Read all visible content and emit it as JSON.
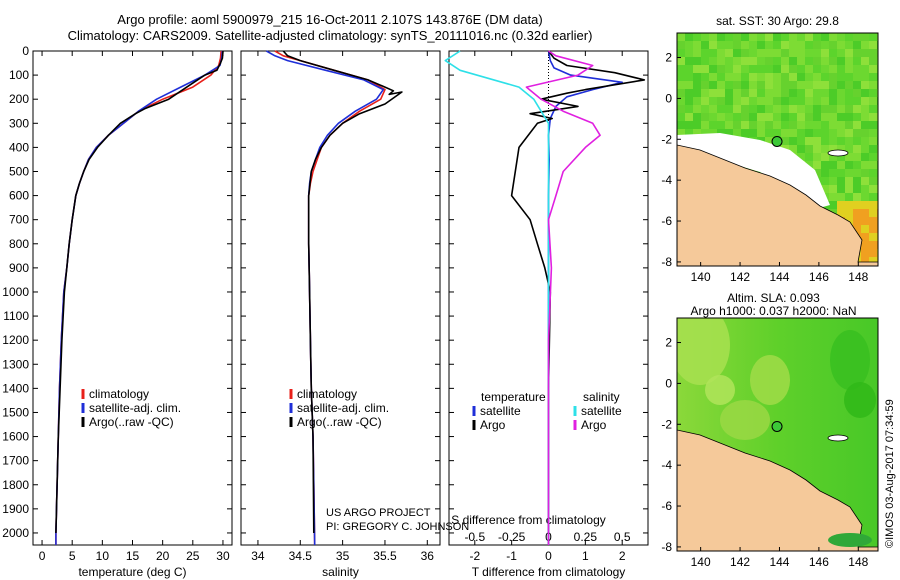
{
  "header": {
    "line1": "Argo profile: aoml 5900979_215 16-Oct-2011 2.107S 143.876E (DM data)",
    "line2": "Climatology: CARS2009. Satellite-adjusted climatology: synTS_20111016.nc (0.32d earlier)"
  },
  "credit": {
    "project": "US ARGO PROJECT",
    "pi": "PI: GREGORY C. JOHNSON"
  },
  "imos_stamp": "©IMOS 03-Aug-2017 07:34:59",
  "colors": {
    "climatology": "#e8201a",
    "satellite": "#1f2fd8",
    "argo": "#000000",
    "satellite_s": "#2ee0e8",
    "argo_s": "#e020e0",
    "land": "#f5c99a"
  },
  "chart_data": [
    {
      "type": "line",
      "id": "temperature",
      "xlabel": "temperature (deg C)",
      "ylim": [
        2050,
        0
      ],
      "xlim": [
        -1.5,
        31.5
      ],
      "xticks": [
        0,
        5,
        10,
        15,
        20,
        25,
        30
      ],
      "yticks": [
        0,
        100,
        200,
        300,
        400,
        500,
        600,
        700,
        800,
        900,
        1000,
        1100,
        1200,
        1300,
        1400,
        1500,
        1600,
        1700,
        1800,
        1900,
        2000
      ],
      "legend": [
        "climatology",
        "satellite-adj. clim.",
        "Argo(..raw -QC)"
      ],
      "series": [
        {
          "name": "climatology",
          "x": [
            29.7,
            29.6,
            29.3,
            28,
            25,
            20,
            16,
            13.5,
            11,
            9,
            7.7,
            6.9,
            6.2,
            5.6,
            5,
            4.5,
            4.1,
            3.6,
            3.2,
            2.9,
            2.7,
            2.5,
            2.3,
            2.3
          ],
          "y": [
            0,
            30,
            60,
            100,
            150,
            200,
            250,
            300,
            350,
            400,
            450,
            500,
            550,
            600,
            700,
            800,
            900,
            1000,
            1200,
            1400,
            1600,
            1800,
            2000,
            2050
          ]
        },
        {
          "name": "satellite-adj. clim.",
          "x": [
            29.9,
            29.8,
            29.5,
            27,
            23,
            19,
            16,
            13.5,
            11,
            9,
            7.7,
            6.9,
            6.2,
            5.6,
            5,
            4.5,
            4.1,
            3.6,
            3.2,
            2.9,
            2.7,
            2.5,
            2.3,
            2.3
          ],
          "y": [
            0,
            30,
            60,
            100,
            150,
            200,
            250,
            300,
            350,
            400,
            450,
            500,
            550,
            600,
            700,
            800,
            900,
            1000,
            1200,
            1400,
            1600,
            1800,
            2000,
            2050
          ]
        },
        {
          "name": "Argo(..raw -QC)",
          "x": [
            30,
            29.9,
            29.6,
            29,
            27,
            24,
            21,
            17,
            15.5,
            13,
            11,
            9.2,
            7.8,
            6.9,
            6.2,
            5.6,
            5,
            4.5,
            4.1,
            3.7,
            3.3,
            3,
            2.7,
            2.5,
            2.3
          ],
          "y": [
            0,
            30,
            50,
            80,
            100,
            150,
            200,
            240,
            260,
            300,
            350,
            400,
            450,
            500,
            550,
            600,
            700,
            800,
            900,
            1000,
            1200,
            1400,
            1600,
            1800,
            2000
          ]
        }
      ]
    },
    {
      "type": "line",
      "id": "salinity",
      "xlabel": "salinity",
      "ylim": [
        2050,
        0
      ],
      "xlim": [
        33.8,
        36.15
      ],
      "xticks": [
        34,
        34.5,
        35,
        35.5,
        36
      ],
      "legend": [
        "climatology",
        "satellite-adj. clim.",
        "Argo(..raw -QC)"
      ],
      "series": [
        {
          "name": "climatology",
          "x": [
            34.2,
            34.3,
            34.5,
            34.9,
            35.3,
            35.5,
            35.45,
            35.2,
            35,
            34.85,
            34.75,
            34.7,
            34.65,
            34.62,
            34.6,
            34.6,
            34.6,
            34.61,
            34.62,
            34.63,
            34.65,
            34.66,
            34.67
          ],
          "y": [
            0,
            20,
            40,
            80,
            120,
            160,
            200,
            250,
            300,
            350,
            400,
            450,
            500,
            550,
            600,
            700,
            800,
            1000,
            1200,
            1400,
            1600,
            1800,
            2050
          ]
        },
        {
          "name": "satellite-adj. clim.",
          "x": [
            34.1,
            34.2,
            34.35,
            34.8,
            35.25,
            35.48,
            35.4,
            35.15,
            34.95,
            34.82,
            34.73,
            34.68,
            34.63,
            34.61,
            34.6,
            34.6,
            34.6,
            34.61,
            34.62,
            34.63,
            34.65,
            34.66,
            34.67
          ],
          "y": [
            0,
            20,
            40,
            80,
            120,
            160,
            200,
            250,
            300,
            350,
            400,
            450,
            500,
            550,
            600,
            700,
            800,
            1000,
            1200,
            1400,
            1600,
            1800,
            2050
          ]
        },
        {
          "name": "Argo(..raw -QC)",
          "x": [
            34.3,
            34.35,
            34.5,
            34.9,
            35.3,
            35.5,
            35.6,
            35.55,
            35.7,
            35.5,
            35.2,
            35,
            34.85,
            34.75,
            34.68,
            34.63,
            34.6,
            34.6,
            34.6,
            34.61,
            34.62,
            34.63,
            34.65,
            34.66
          ],
          "y": [
            0,
            20,
            40,
            80,
            120,
            150,
            165,
            180,
            170,
            220,
            260,
            300,
            350,
            400,
            450,
            500,
            600,
            700,
            800,
            1000,
            1200,
            1400,
            1600,
            2000
          ]
        }
      ]
    },
    {
      "type": "line",
      "id": "difference",
      "xlabel": "T difference from climatology",
      "xlabel2": "S difference from climatology",
      "ylim": [
        2050,
        0
      ],
      "xlim": [
        -2.7,
        2.7
      ],
      "xticks": [
        -2,
        -1,
        0,
        1,
        2
      ],
      "xticks_s": [
        -0.5,
        -0.25,
        0,
        0.25,
        0.5
      ],
      "legend_t_title": "temperature",
      "legend_s_title": "salinity",
      "legend_t": [
        "satellite",
        "Argo"
      ],
      "legend_s": [
        "satellite",
        "Argo"
      ],
      "series": [
        {
          "name": "satellite",
          "group": "temperature",
          "x": [
            0,
            0.05,
            0.15,
            0.6,
            2,
            1.2,
            0.5,
            0.2,
            0.05,
            0,
            0.02,
            0,
            0,
            0
          ],
          "y": [
            0,
            40,
            70,
            100,
            130,
            160,
            190,
            230,
            280,
            350,
            450,
            600,
            1000,
            2050
          ]
        },
        {
          "name": "Argo",
          "group": "temperature",
          "x": [
            0,
            0.15,
            0.5,
            1.8,
            2.6,
            1,
            0.5,
            -0.2,
            0.8,
            -0.5,
            0.1,
            -0.3,
            -0.8,
            -1,
            -0.5,
            -0.3,
            -0.1,
            0.05,
            0,
            0
          ],
          "y": [
            0,
            30,
            60,
            90,
            120,
            160,
            175,
            200,
            230,
            260,
            280,
            300,
            400,
            600,
            700,
            800,
            900,
            1000,
            1400,
            2050
          ]
        },
        {
          "name": "satellite",
          "group": "salinity",
          "x": [
            -0.6,
            -0.7,
            -0.6,
            -0.2,
            -0.1,
            -0.05,
            0,
            0,
            0
          ],
          "y": [
            0,
            40,
            80,
            150,
            200,
            250,
            300,
            600,
            2050
          ]
        },
        {
          "name": "Argo",
          "group": "salinity",
          "x": [
            0,
            0.05,
            0.3,
            0.2,
            -0.15,
            -0.05,
            0.1,
            0.3,
            0.35,
            0.25,
            0.1,
            0.05,
            0,
            0.02,
            0,
            0
          ],
          "y": [
            0,
            20,
            60,
            100,
            150,
            200,
            250,
            300,
            350,
            400,
            500,
            600,
            700,
            900,
            1200,
            2050
          ]
        }
      ]
    },
    {
      "type": "heatmap",
      "id": "sst_map",
      "title": "sat. SST: 30 Argo: 29.8",
      "xticks": [
        140,
        142,
        144,
        146,
        148
      ],
      "yticks": [
        2,
        0,
        -2,
        -4,
        -6,
        -8
      ],
      "xlim": [
        138.8,
        149
      ],
      "ylim": [
        -8.2,
        3.2
      ],
      "argo_position": [
        143.876,
        -2.107
      ]
    },
    {
      "type": "heatmap",
      "id": "sla_map",
      "title": "Altim. SLA: 0.093",
      "title2": "Argo h1000: 0.037 h2000: NaN",
      "xticks": [
        140,
        142,
        144,
        146,
        148
      ],
      "yticks": [
        2,
        0,
        -2,
        -4,
        -6,
        -8
      ],
      "xlim": [
        138.8,
        149
      ],
      "ylim": [
        -8.2,
        3.2
      ],
      "argo_position": [
        143.876,
        -2.107
      ]
    }
  ]
}
